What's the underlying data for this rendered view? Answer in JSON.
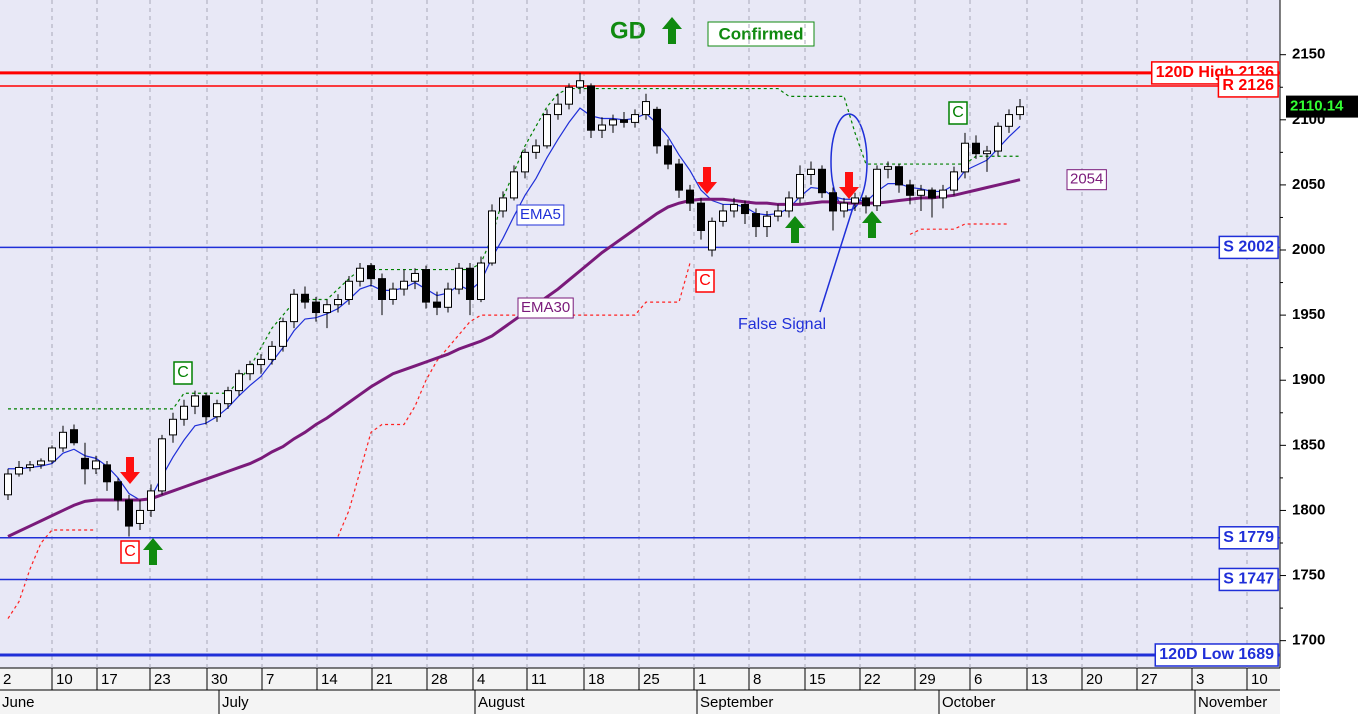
{
  "chart_data": {
    "type": "candlestick",
    "title": "GD",
    "status": "Confirmed",
    "ylim": [
      1679,
      2192
    ],
    "yticks": [
      1700,
      1750,
      1800,
      1850,
      1900,
      1950,
      2000,
      2050,
      2100,
      2150
    ],
    "x_ticks": [
      "2",
      "10",
      "17",
      "23",
      "30",
      "7",
      "14",
      "21",
      "28",
      "4",
      "11",
      "18",
      "25",
      "1",
      "8",
      "15",
      "22",
      "29",
      "6",
      "13",
      "20",
      "27",
      "3",
      "10"
    ],
    "months": [
      "June",
      "July",
      "August",
      "September",
      "October",
      "November"
    ],
    "grid": true,
    "open": [
      1812,
      1828,
      1833,
      1835,
      1838,
      1848,
      1862,
      1840,
      1832,
      1835,
      1822,
      1808,
      1790,
      1800,
      1815,
      1858,
      1870,
      1880,
      1888,
      1872,
      1882,
      1892,
      1905,
      1912,
      1916,
      1926,
      1945,
      1966,
      1960,
      1952,
      1958,
      1962,
      1976,
      1988,
      1978,
      1962,
      1970,
      1976,
      1985,
      1960,
      1956,
      1970,
      1986,
      1962,
      1990,
      2030,
      2040,
      2060,
      2075,
      2080,
      2104,
      2112,
      2125,
      2126,
      2092,
      2096,
      2100,
      2098,
      2104,
      2108,
      2080,
      2066,
      2046,
      2036,
      2000,
      2022,
      2030,
      2035,
      2028,
      2018,
      2026,
      2030,
      2040,
      2058,
      2062,
      2044,
      2030,
      2036,
      2040,
      2034,
      2062,
      2064,
      2050,
      2042,
      2046,
      2040,
      2046,
      2060,
      2082,
      2074,
      2076,
      2095,
      2104
    ],
    "high": [
      1832,
      1838,
      1838,
      1840,
      1850,
      1865,
      1866,
      1852,
      1842,
      1838,
      1825,
      1812,
      1808,
      1820,
      1858,
      1875,
      1885,
      1892,
      1890,
      1885,
      1895,
      1908,
      1915,
      1920,
      1930,
      1948,
      1970,
      1972,
      1964,
      1962,
      1966,
      1980,
      1990,
      1990,
      1982,
      1975,
      1985,
      1986,
      1988,
      1968,
      1975,
      1990,
      1990,
      1995,
      2035,
      2045,
      2065,
      2078,
      2085,
      2108,
      2120,
      2128,
      2136,
      2128,
      2102,
      2104,
      2106,
      2108,
      2120,
      2110,
      2085,
      2070,
      2050,
      2040,
      2025,
      2035,
      2040,
      2038,
      2032,
      2030,
      2035,
      2045,
      2065,
      2068,
      2065,
      2048,
      2040,
      2044,
      2042,
      2065,
      2068,
      2066,
      2054,
      2050,
      2048,
      2050,
      2064,
      2090,
      2088,
      2080,
      2098,
      2108,
      2116
    ],
    "low": [
      1808,
      1826,
      1830,
      1832,
      1836,
      1845,
      1850,
      1820,
      1828,
      1815,
      1800,
      1780,
      1785,
      1795,
      1812,
      1852,
      1865,
      1874,
      1866,
      1868,
      1878,
      1888,
      1900,
      1905,
      1912,
      1922,
      1940,
      1955,
      1945,
      1940,
      1952,
      1958,
      1972,
      1972,
      1950,
      1958,
      1965,
      1970,
      1955,
      1950,
      1952,
      1966,
      1950,
      1960,
      1988,
      2025,
      2038,
      2055,
      2070,
      2078,
      2100,
      2108,
      2120,
      2086,
      2086,
      2090,
      2094,
      2094,
      2100,
      2074,
      2062,
      2040,
      2030,
      2008,
      1995,
      2018,
      2025,
      2020,
      2010,
      2010,
      2022,
      2025,
      2036,
      2050,
      2040,
      2015,
      2025,
      2030,
      2028,
      2030,
      2055,
      2044,
      2035,
      2030,
      2025,
      2032,
      2042,
      2055,
      2070,
      2060,
      2072,
      2090,
      2100
    ],
    "close": [
      1828,
      1833,
      1835,
      1838,
      1848,
      1860,
      1852,
      1832,
      1838,
      1822,
      1808,
      1788,
      1800,
      1815,
      1855,
      1870,
      1880,
      1888,
      1872,
      1882,
      1892,
      1905,
      1912,
      1916,
      1926,
      1945,
      1966,
      1960,
      1952,
      1958,
      1962,
      1976,
      1986,
      1978,
      1962,
      1970,
      1976,
      1982,
      1960,
      1956,
      1970,
      1986,
      1962,
      1990,
      2030,
      2040,
      2060,
      2075,
      2080,
      2104,
      2112,
      2125,
      2130,
      2092,
      2096,
      2100,
      2098,
      2104,
      2114,
      2080,
      2066,
      2046,
      2036,
      2015,
      2022,
      2030,
      2035,
      2028,
      2018,
      2026,
      2030,
      2040,
      2058,
      2062,
      2044,
      2030,
      2036,
      2040,
      2034,
      2062,
      2064,
      2050,
      2042,
      2046,
      2040,
      2046,
      2060,
      2082,
      2074,
      2076,
      2095,
      2104,
      2110
    ],
    "series": [
      {
        "name": "EMA5",
        "color": "#1f2fd8",
        "values": [
          1832,
          1832,
          1833,
          1834,
          1836,
          1844,
          1847,
          1842,
          1840,
          1834,
          1825,
          1813,
          1808,
          1810,
          1826,
          1841,
          1854,
          1865,
          1867,
          1872,
          1879,
          1888,
          1896,
          1903,
          1914,
          1925,
          1938,
          1947,
          1948,
          1951,
          1955,
          1962,
          1970,
          1973,
          1969,
          1969,
          1971,
          1975,
          1970,
          1965,
          1967,
          1973,
          1969,
          1976,
          1994,
          2009,
          2026,
          2042,
          2055,
          2071,
          2085,
          2098,
          2109,
          2103,
          2101,
          2101,
          2100,
          2101,
          2105,
          2097,
          2087,
          2073,
          2061,
          2046,
          2038,
          2035,
          2035,
          2033,
          2028,
          2027,
          2028,
          2032,
          2041,
          2048,
          2047,
          2041,
          2039,
          2039,
          2037,
          2045,
          2051,
          2051,
          2048,
          2047,
          2045,
          2045,
          2050,
          2061,
          2065,
          2069,
          2078,
          2087,
          2095
        ]
      },
      {
        "name": "EMA30",
        "color": "#7a1a7a",
        "values": [
          1780,
          1784,
          1788,
          1792,
          1796,
          1800,
          1804,
          1807,
          1808,
          1808,
          1808,
          1808,
          1808,
          1809,
          1812,
          1815,
          1818,
          1821,
          1824,
          1827,
          1830,
          1833,
          1836,
          1840,
          1845,
          1849,
          1855,
          1860,
          1866,
          1871,
          1877,
          1883,
          1889,
          1895,
          1900,
          1905,
          1908,
          1911,
          1914,
          1917,
          1920,
          1924,
          1927,
          1930,
          1934,
          1940,
          1946,
          1952,
          1958,
          1964,
          1970,
          1977,
          1984,
          1991,
          1998,
          2004,
          2010,
          2016,
          2022,
          2028,
          2033,
          2036,
          2038,
          2039,
          2039,
          2039,
          2038,
          2037,
          2036,
          2036,
          2035,
          2035,
          2035,
          2036,
          2037,
          2037,
          2036,
          2036,
          2036,
          2036,
          2037,
          2038,
          2039,
          2040,
          2040,
          2041,
          2042,
          2044,
          2046,
          2048,
          2050,
          2052,
          2054
        ]
      }
    ],
    "stops": [
      {
        "color": "#ff2020",
        "values": [
          1717,
          1730,
          1755,
          1775,
          1785,
          1785,
          1785,
          1785,
          1785,
          null,
          null,
          null,
          null,
          null,
          null,
          null,
          null,
          null,
          null,
          null,
          null,
          null,
          null,
          null,
          null,
          null,
          null,
          null,
          null,
          null,
          1780,
          1800,
          1830,
          1860,
          1866,
          1866,
          1866,
          1880,
          1900,
          1915,
          1925,
          1935,
          1945,
          1950,
          1950,
          1950,
          1950,
          1950,
          1950,
          1950,
          1950,
          1950,
          1950,
          1950,
          1950,
          1950,
          1950,
          1950,
          1960,
          1960,
          1960,
          1960,
          1990,
          null,
          null,
          null,
          null,
          null,
          null,
          null,
          null,
          null,
          null,
          null,
          null,
          null,
          null,
          null,
          null,
          null,
          null,
          null,
          2012,
          2016,
          2016,
          2016,
          2016,
          2020,
          2020,
          2020,
          2020,
          2020
        ]
      },
      {
        "color": "#008000",
        "values": [
          1878,
          1878,
          1878,
          1878,
          1878,
          1878,
          1878,
          1878,
          1878,
          1878,
          1878,
          1878,
          1878,
          1878,
          1878,
          1878,
          1890,
          1890,
          1890,
          1890,
          1890,
          1900,
          1910,
          1925,
          1940,
          1950,
          1960,
          1962,
          1962,
          1962,
          1970,
          1978,
          1985,
          1985,
          1985,
          1985,
          1985,
          1985,
          1985,
          1985,
          1985,
          1985,
          1985,
          1990,
          2010,
          2040,
          2060,
          2080,
          2095,
          2110,
          2120,
          2124,
          2124,
          2124,
          2124,
          2124,
          2124,
          2124,
          2124,
          2124,
          2124,
          2124,
          2124,
          2124,
          2124,
          2124,
          2124,
          2124,
          2124,
          2124,
          2124,
          2118,
          2118,
          2118,
          2118,
          2118,
          2118,
          2090,
          2066,
          2066,
          2066,
          2066,
          2066,
          2066,
          2066,
          2066,
          2066,
          2066,
          2072,
          2072,
          2072,
          2072,
          2072
        ]
      }
    ],
    "levels": [
      {
        "value": 2136,
        "label": "120D High 2136",
        "color": "#ff0000",
        "line_width": 3
      },
      {
        "value": 2126,
        "label": "R 2126",
        "color": "#ff0000",
        "line_width": 1.5
      },
      {
        "value": 2002,
        "label": "S 2002",
        "color": "#1f2fd8",
        "line_width": 1.5
      },
      {
        "value": 1779,
        "label": "S 1779",
        "color": "#1f2fd8",
        "line_width": 1.5
      },
      {
        "value": 1747,
        "label": "S 1747",
        "color": "#1f2fd8",
        "line_width": 1.5
      },
      {
        "value": 1689,
        "label": "120D Low 1689",
        "color": "#1f2fd8",
        "line_width": 3
      }
    ],
    "markers": [
      {
        "label": "C",
        "color": "#008000"
      },
      {
        "label": "C",
        "color": "#ff0000"
      },
      {
        "label": "C",
        "color": "#ff0000"
      },
      {
        "label": "C",
        "color": "#008000"
      }
    ],
    "ema30_last": 2054,
    "last_price": 2110.14,
    "annotation": "False Signal"
  }
}
